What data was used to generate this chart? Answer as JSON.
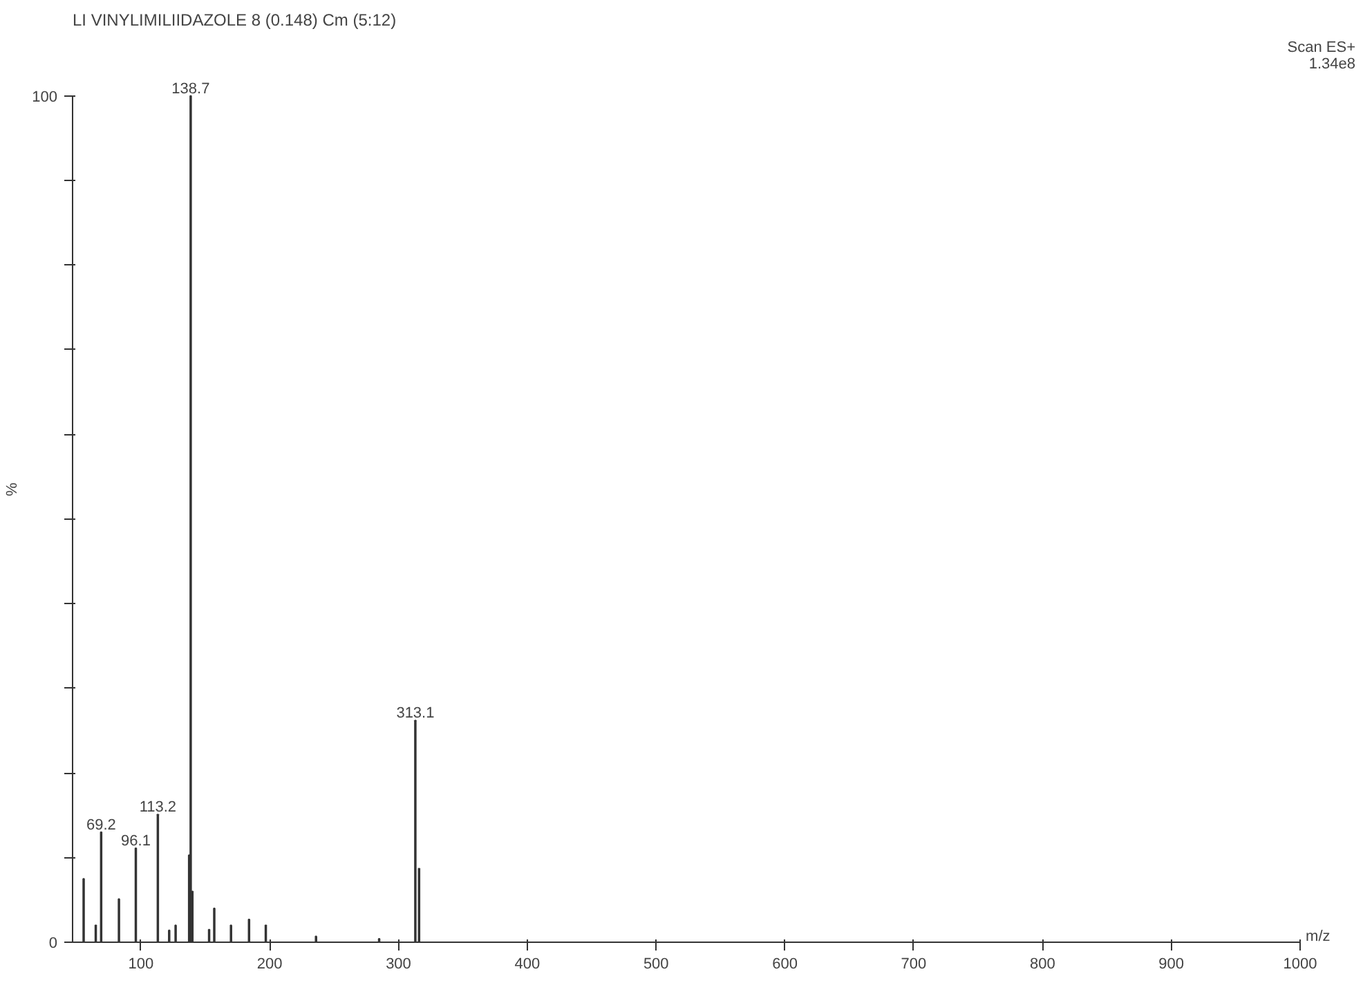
{
  "chart_data": {
    "type": "bar",
    "title": "LI VINYLIMILIIDAZOLE 8 (0.148) Cm (5:12)",
    "xlabel": "m/z",
    "ylabel": "%",
    "x": [
      55.6,
      65,
      69.2,
      83,
      96.1,
      113.2,
      122,
      127,
      137.5,
      138.7,
      140,
      153,
      157,
      170,
      184,
      197,
      236,
      285,
      313.1,
      316
    ],
    "values": [
      7.5,
      2,
      13.0,
      5.1,
      11.1,
      15.1,
      1.4,
      2,
      10.3,
      100,
      6,
      1.5,
      4,
      2,
      2.7,
      2,
      0.7,
      0.4,
      26.2,
      8.7
    ],
    "color": "#333333",
    "xlim": [
      47,
      1000
    ],
    "ylim": [
      0,
      100
    ],
    "xticks": [
      100,
      200,
      300,
      400,
      500,
      600,
      700,
      800,
      900,
      1000
    ],
    "yticks": [
      0,
      {
        "value": 10,
        "label": null
      },
      {
        "value": 20,
        "label": null
      },
      {
        "value": 30,
        "label": null
      },
      {
        "value": 40,
        "label": null
      },
      {
        "value": 50,
        "label": null
      },
      {
        "value": 60,
        "label": null
      },
      {
        "value": 70,
        "label": null
      },
      {
        "value": 80,
        "label": null
      },
      {
        "value": 90,
        "label": null
      },
      100
    ],
    "grid": false,
    "annotations": [
      "Scan ES+",
      "1.34e8",
      {
        "text": "138.7",
        "x": 138.7,
        "y": 100
      },
      {
        "text": "313.1",
        "x": 313.1,
        "y": 26.2
      },
      {
        "text": "113.2",
        "x": 113.2,
        "y": 15.1
      },
      {
        "text": "69.2",
        "x": 69.2,
        "y": 13.0
      },
      {
        "text": "96.1",
        "x": 96.1,
        "y": 11.1
      }
    ]
  }
}
